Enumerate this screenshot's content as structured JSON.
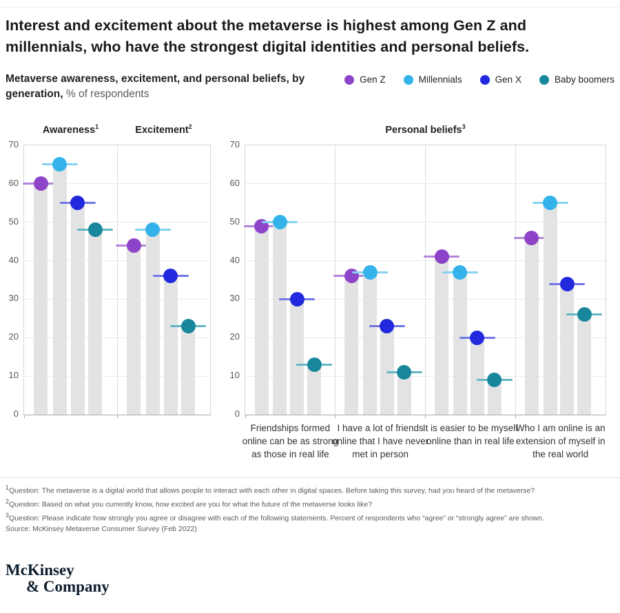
{
  "title": "Interest and excitement about the metaverse is highest among Gen Z and millennials, who have the strongest digital identities and personal beliefs.",
  "subtitle": {
    "bold": "Metaverse awareness, excitement, and personal beliefs, by generation,",
    "unit": "% of respondents"
  },
  "chart_data": {
    "type": "scatter",
    "variant": "lollipop-dot",
    "title": "Metaverse awareness, excitement, and personal beliefs, by generation",
    "ylabel": "% of respondents",
    "ylim": [
      0,
      70
    ],
    "yticks": [
      0,
      10,
      20,
      30,
      40,
      50,
      60,
      70
    ],
    "grid": true,
    "legend_position": "top-right",
    "bar_color": "#e3e3e3",
    "series": [
      {
        "name": "Gen Z",
        "dot": "#8e44c8",
        "line": "#b183da"
      },
      {
        "name": "Millennials",
        "dot": "#33b3ea",
        "line": "#85d1f3"
      },
      {
        "name": "Gen X",
        "dot": "#2128dd",
        "line": "#7077e6"
      },
      {
        "name": "Baby boomers",
        "dot": "#19879b",
        "line": "#63b7c2"
      }
    ],
    "panels": [
      {
        "id": "awareness-excitement",
        "groups": [
          {
            "label": "Awareness",
            "sup": "1",
            "values": [
              60,
              65,
              55,
              48
            ]
          },
          {
            "label": "Excitement",
            "sup": "2",
            "values": [
              44,
              48,
              36,
              23
            ]
          }
        ]
      },
      {
        "id": "personal-beliefs",
        "title": "Personal beliefs",
        "sup": "3",
        "groups": [
          {
            "label": "Friendships formed online can be as strong as those in real life",
            "values": [
              49,
              50,
              30,
              13
            ]
          },
          {
            "label": "I have a lot of friends online that I have never met in person",
            "values": [
              36,
              37,
              23,
              11
            ]
          },
          {
            "label": "It is easier to be myself online than in real life",
            "values": [
              41,
              37,
              20,
              9
            ]
          },
          {
            "label": "Who I am online is an extension of myself in the real world",
            "values": [
              46,
              55,
              34,
              26
            ]
          }
        ]
      }
    ]
  },
  "footnotes": [
    {
      "sup": "1",
      "text": "Question: The metaverse is a digital world that allows people to interact with each other in digital spaces. Before taking this survey, had you heard of the metaverse?"
    },
    {
      "sup": "2",
      "text": "Question: Based on what you currently know, how excited are you for what the future of the metaverse looks like?"
    },
    {
      "sup": "3",
      "text": "Question: Please indicate how strongly you agree or disagree with each of the following statements. Percent of respondents who “agree” or “strongly agree” are shown."
    },
    {
      "sup": "",
      "text": "Source: McKinsey Metaverse Consumer Survey (Feb 2022)"
    }
  ],
  "logo": {
    "line1": "McKinsey",
    "line2": "& Company"
  }
}
